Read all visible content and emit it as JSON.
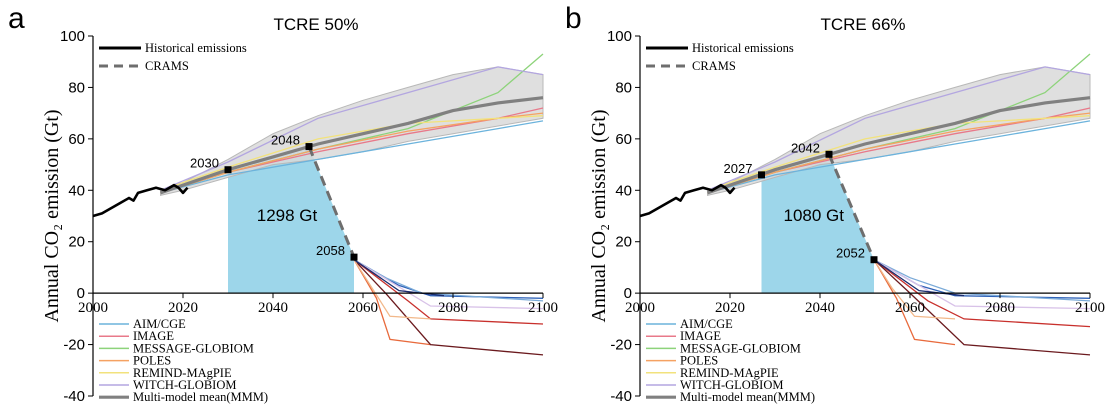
{
  "chart_data": [
    {
      "type": "line",
      "panel_letter": "a",
      "title": "TCRE 50%",
      "ylabel": "Annual CO₂ emission (Gt)",
      "xlim": [
        2000,
        2100
      ],
      "ylim": [
        -40,
        100
      ],
      "x_ticks": [
        "2000",
        "2020",
        "2040",
        "2060",
        "2080",
        "2100"
      ],
      "y_ticks": [
        "-40",
        "-20",
        "0",
        "20",
        "40",
        "60",
        "80",
        "100"
      ],
      "legend_top": [
        "Historical emissions",
        "CRAMS"
      ],
      "legend_bottom": [
        "AIM/CGE",
        "IMAGE",
        "MESSAGE-GLOBIOM",
        "POLES",
        "REMIND-MAgPIE",
        "WITCH-GLOBIOM",
        "Multi-model mean(MMM)"
      ],
      "budget_label": "1298 Gt",
      "points": [
        {
          "year": 2030,
          "value": 48,
          "label": "2030"
        },
        {
          "year": 2048,
          "value": 57,
          "label": "2048"
        },
        {
          "year": 2058,
          "value": 14,
          "label": "2058"
        }
      ],
      "historical": {
        "x": [
          2000,
          2002,
          2004,
          2006,
          2008,
          2009,
          2010,
          2012,
          2014,
          2016,
          2017,
          2018,
          2019,
          2020,
          2021
        ],
        "y": [
          30,
          31,
          33,
          35,
          37,
          36,
          39,
          40,
          41,
          40,
          41,
          42,
          41,
          39,
          41
        ]
      },
      "envelope": {
        "x": [
          2015,
          2020,
          2030,
          2040,
          2050,
          2060,
          2070,
          2080,
          2090,
          2100
        ],
        "upper": [
          40,
          43,
          52,
          62,
          69,
          75,
          80,
          85,
          88,
          85
        ],
        "lower": [
          38,
          40,
          45,
          50,
          52,
          55,
          59,
          62,
          65,
          68
        ]
      },
      "mmm": {
        "x": [
          2015,
          2020,
          2030,
          2040,
          2050,
          2060,
          2070,
          2080,
          2090,
          2100
        ],
        "y": [
          39,
          42,
          48,
          53,
          58,
          62,
          66,
          71,
          74,
          76
        ]
      },
      "models": [
        {
          "name": "AIM/CGE",
          "color": "#6cb3dc",
          "x": [
            2015,
            2030,
            2050,
            2070,
            2090,
            2100
          ],
          "y": [
            39,
            46,
            52,
            58,
            64,
            67
          ]
        },
        {
          "name": "IMAGE",
          "color": "#e8798a",
          "x": [
            2015,
            2030,
            2050,
            2070,
            2090,
            2100
          ],
          "y": [
            39,
            47,
            55,
            62,
            68,
            72
          ]
        },
        {
          "name": "MESSAGE-GLOBIOM",
          "color": "#8dd37a",
          "x": [
            2015,
            2030,
            2050,
            2070,
            2090,
            2100
          ],
          "y": [
            39,
            47,
            56,
            64,
            78,
            93
          ]
        },
        {
          "name": "POLES",
          "color": "#f5a262",
          "x": [
            2015,
            2030,
            2050,
            2070,
            2090,
            2100
          ],
          "y": [
            39,
            47,
            56,
            63,
            68,
            70
          ]
        },
        {
          "name": "REMIND-MAgPIE",
          "color": "#f2e27c",
          "x": [
            2015,
            2030,
            2050,
            2070,
            2090,
            2100
          ],
          "y": [
            40,
            49,
            60,
            66,
            68,
            69
          ]
        },
        {
          "name": "WITCH-GLOBIOM",
          "color": "#b3a6e0",
          "x": [
            2015,
            2030,
            2050,
            2070,
            2090,
            2100
          ],
          "y": [
            40,
            51,
            68,
            78,
            88,
            85
          ]
        }
      ],
      "mmm_color": "#808080",
      "decline_lines": [
        {
          "color": "#2f62b8",
          "x": [
            2058,
            2068,
            2075,
            2100
          ],
          "y": [
            13,
            3,
            -1,
            -2
          ]
        },
        {
          "color": "#7aaad8",
          "x": [
            2058,
            2065,
            2073,
            2100
          ],
          "y": [
            13,
            6,
            0,
            -3
          ]
        },
        {
          "color": "#c8302c",
          "x": [
            2058,
            2070,
            2075,
            2100
          ],
          "y": [
            13,
            -3,
            -10,
            -12
          ]
        },
        {
          "color": "#e86a3c",
          "x": [
            2058,
            2063,
            2066,
            2075
          ],
          "y": [
            13,
            -2,
            -18,
            -20
          ]
        },
        {
          "color": "#6b1a1e",
          "x": [
            2058,
            2065,
            2075,
            2100
          ],
          "y": [
            13,
            0,
            -20,
            -24
          ]
        },
        {
          "color": "#f2b88a",
          "x": [
            2058,
            2062,
            2066,
            2075
          ],
          "y": [
            13,
            2,
            -9,
            -10
          ]
        },
        {
          "color": "#d8c2e8",
          "x": [
            2058,
            2075,
            2100
          ],
          "y": [
            13,
            -5,
            -6
          ]
        },
        {
          "color": "#1b2c6e",
          "x": [
            2058,
            2068,
            2078
          ],
          "y": [
            13,
            1,
            -1
          ]
        }
      ]
    },
    {
      "type": "line",
      "panel_letter": "b",
      "title": "TCRE 66%",
      "ylabel": "Annual CO₂ emission (Gt)",
      "xlim": [
        2000,
        2100
      ],
      "ylim": [
        -40,
        100
      ],
      "x_ticks": [
        "2000",
        "2020",
        "2040",
        "2060",
        "2080",
        "2100"
      ],
      "y_ticks": [
        "-40",
        "-20",
        "0",
        "20",
        "40",
        "60",
        "80",
        "100"
      ],
      "legend_top": [
        "Historical emissions",
        "CRAMS"
      ],
      "legend_bottom": [
        "AIM/CGE",
        "IMAGE",
        "MESSAGE-GLOBIOM",
        "POLES",
        "REMIND-MAgPIE",
        "WITCH-GLOBIOM",
        "Multi-model mean(MMM)"
      ],
      "budget_label": "1080 Gt",
      "points": [
        {
          "year": 2027,
          "value": 46,
          "label": "2027"
        },
        {
          "year": 2042,
          "value": 54,
          "label": "2042"
        },
        {
          "year": 2052,
          "value": 13,
          "label": "2052"
        }
      ],
      "historical": {
        "x": [
          2000,
          2002,
          2004,
          2006,
          2008,
          2009,
          2010,
          2012,
          2014,
          2016,
          2017,
          2018,
          2019,
          2020,
          2021
        ],
        "y": [
          30,
          31,
          33,
          35,
          37,
          36,
          39,
          40,
          41,
          40,
          41,
          42,
          41,
          39,
          41
        ]
      },
      "envelope": {
        "x": [
          2015,
          2020,
          2030,
          2040,
          2050,
          2060,
          2070,
          2080,
          2090,
          2100
        ],
        "upper": [
          40,
          43,
          52,
          62,
          69,
          75,
          80,
          85,
          88,
          85
        ],
        "lower": [
          38,
          40,
          45,
          50,
          52,
          55,
          59,
          62,
          65,
          68
        ]
      },
      "mmm": {
        "x": [
          2015,
          2020,
          2030,
          2040,
          2050,
          2060,
          2070,
          2080,
          2090,
          2100
        ],
        "y": [
          39,
          42,
          48,
          53,
          58,
          62,
          66,
          71,
          74,
          76
        ]
      },
      "models": [
        {
          "name": "AIM/CGE",
          "color": "#6cb3dc",
          "x": [
            2015,
            2030,
            2050,
            2070,
            2090,
            2100
          ],
          "y": [
            39,
            46,
            52,
            58,
            64,
            67
          ]
        },
        {
          "name": "IMAGE",
          "color": "#e8798a",
          "x": [
            2015,
            2030,
            2050,
            2070,
            2090,
            2100
          ],
          "y": [
            39,
            47,
            55,
            62,
            68,
            72
          ]
        },
        {
          "name": "MESSAGE-GLOBIOM",
          "color": "#8dd37a",
          "x": [
            2015,
            2030,
            2050,
            2070,
            2090,
            2100
          ],
          "y": [
            39,
            47,
            56,
            64,
            78,
            93
          ]
        },
        {
          "name": "POLES",
          "color": "#f5a262",
          "x": [
            2015,
            2030,
            2050,
            2070,
            2090,
            2100
          ],
          "y": [
            39,
            47,
            56,
            63,
            68,
            70
          ]
        },
        {
          "name": "REMIND-MAgPIE",
          "color": "#f2e27c",
          "x": [
            2015,
            2030,
            2050,
            2070,
            2090,
            2100
          ],
          "y": [
            40,
            49,
            60,
            66,
            68,
            69
          ]
        },
        {
          "name": "WITCH-GLOBIOM",
          "color": "#b3a6e0",
          "x": [
            2015,
            2030,
            2050,
            2070,
            2090,
            2100
          ],
          "y": [
            40,
            51,
            68,
            78,
            88,
            85
          ]
        }
      ],
      "mmm_color": "#808080",
      "decline_lines": [
        {
          "color": "#2f62b8",
          "x": [
            2052,
            2062,
            2070,
            2100
          ],
          "y": [
            13,
            3,
            -1,
            -2
          ]
        },
        {
          "color": "#7aaad8",
          "x": [
            2052,
            2060,
            2070,
            2100
          ],
          "y": [
            13,
            6,
            0,
            -3
          ]
        },
        {
          "color": "#c8302c",
          "x": [
            2052,
            2064,
            2072,
            2100
          ],
          "y": [
            13,
            -3,
            -10,
            -13
          ]
        },
        {
          "color": "#e86a3c",
          "x": [
            2052,
            2057,
            2061,
            2070
          ],
          "y": [
            13,
            -2,
            -18,
            -20
          ]
        },
        {
          "color": "#6b1a1e",
          "x": [
            2052,
            2060,
            2072,
            2100
          ],
          "y": [
            13,
            0,
            -20,
            -24
          ]
        },
        {
          "color": "#f2b88a",
          "x": [
            2052,
            2056,
            2061,
            2070
          ],
          "y": [
            13,
            2,
            -9,
            -10
          ]
        },
        {
          "color": "#d8c2e8",
          "x": [
            2052,
            2070,
            2100
          ],
          "y": [
            13,
            -5,
            -6
          ]
        },
        {
          "color": "#1b2c6e",
          "x": [
            2052,
            2062,
            2072
          ],
          "y": [
            13,
            1,
            -1
          ]
        }
      ]
    }
  ],
  "colors": {
    "budget_fill": "#9dd6ea",
    "envelope_fill": "#d9d9d9",
    "envelope_edge": "#b8b8b8",
    "historical": "#000000",
    "crams": "#6e6e6e",
    "marker": "#000000"
  }
}
